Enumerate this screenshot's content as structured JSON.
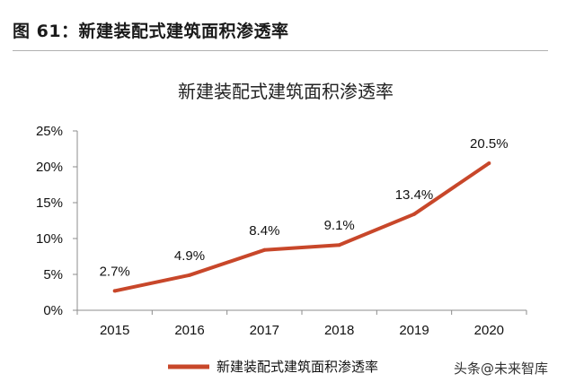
{
  "figure_title": "图 61：新建装配式建筑面积渗透率",
  "watermark": "头条@未来智库",
  "colors": {
    "series": "#c8472a",
    "axis": "#8c8c8c",
    "rule": "#b0b0b0"
  },
  "chart_data": {
    "type": "line",
    "title": "新建装配式建筑面积渗透率",
    "categories": [
      "2015",
      "2016",
      "2017",
      "2018",
      "2019",
      "2020"
    ],
    "series": [
      {
        "name": "新建装配式建筑面积渗透率",
        "values": [
          2.7,
          4.9,
          8.4,
          9.1,
          13.4,
          20.5
        ],
        "labels": [
          "2.7%",
          "4.9%",
          "8.4%",
          "9.1%",
          "13.4%",
          "20.5%"
        ]
      }
    ],
    "ylim": [
      0,
      25
    ],
    "yticks": [
      "0%",
      "5%",
      "10%",
      "15%",
      "20%",
      "25%"
    ],
    "xlabel": "",
    "ylabel": "",
    "grid": false,
    "legend": "bottom-center"
  }
}
